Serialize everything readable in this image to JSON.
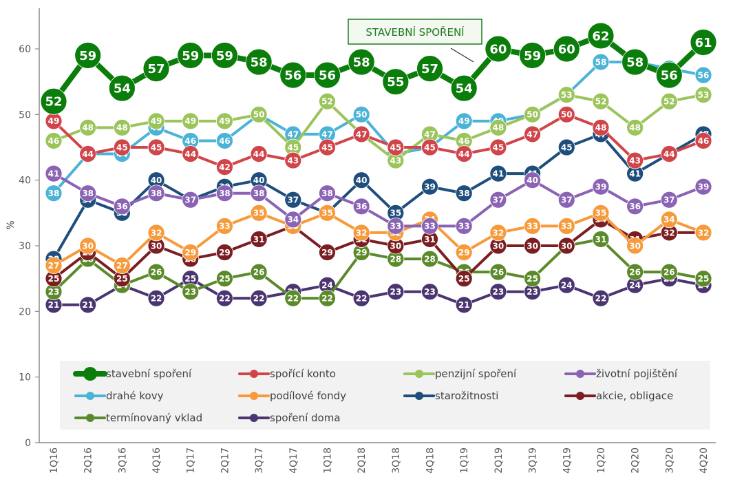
{
  "chart_data": {
    "type": "line",
    "title": "",
    "xlabel": "",
    "ylabel": "%",
    "ylim": [
      0,
      65
    ],
    "yticks": [
      "0",
      "10",
      "20",
      "30",
      "40",
      "50",
      "60"
    ],
    "grid": false,
    "legend_position": "bottom-inside",
    "categories": [
      "1Q16",
      "2Q16",
      "3Q16",
      "4Q16",
      "1Q17",
      "2Q17",
      "3Q17",
      "4Q17",
      "1Q18",
      "2Q18",
      "3Q18",
      "4Q18",
      "1Q19",
      "2Q19",
      "3Q19",
      "4Q19",
      "1Q20",
      "2Q20",
      "3Q20",
      "4Q20"
    ],
    "annotation": "STAVEBNÍ SPOŘENÍ",
    "series": [
      {
        "name": "stavební spoření",
        "color": "#0a7d0a",
        "emphasis": true,
        "values": [
          52,
          59,
          54,
          57,
          59,
          59,
          58,
          56,
          56,
          58,
          55,
          57,
          54,
          60,
          59,
          60,
          62,
          58,
          56,
          61
        ]
      },
      {
        "name": "spořící konto",
        "color": "#d0454a",
        "values": [
          49,
          44,
          45,
          45,
          44,
          42,
          44,
          43,
          45,
          47,
          45,
          45,
          44,
          45,
          47,
          50,
          48,
          43,
          44,
          46
        ]
      },
      {
        "name": "penzijní spoření",
        "color": "#9bc45a",
        "values": [
          46,
          48,
          48,
          49,
          49,
          49,
          50,
          45,
          52,
          47,
          43,
          47,
          46,
          48,
          50,
          53,
          52,
          48,
          52,
          53
        ]
      },
      {
        "name": "životní pojištění",
        "color": "#8a63b5",
        "values": [
          41,
          38,
          36,
          38,
          37,
          38,
          38,
          34,
          38,
          36,
          33,
          33,
          33,
          37,
          40,
          37,
          39,
          36,
          37,
          39
        ]
      },
      {
        "name": "drahé kovy",
        "color": "#4bb3d6",
        "values": [
          38,
          44,
          44,
          48,
          46,
          46,
          50,
          47,
          47,
          50,
          44,
          45,
          49,
          49,
          50,
          53,
          58,
          58,
          57,
          56
        ]
      },
      {
        "name": "podílové fondy",
        "color": "#f79a3c",
        "values": [
          27,
          30,
          27,
          32,
          29,
          33,
          35,
          33,
          35,
          32,
          32,
          34,
          29,
          32,
          33,
          33,
          35,
          30,
          34,
          32
        ]
      },
      {
        "name": "starožitnosti",
        "color": "#1f4e7d",
        "values": [
          28,
          37,
          35,
          40,
          37,
          39,
          40,
          37,
          35,
          40,
          35,
          39,
          38,
          41,
          41,
          45,
          47,
          41,
          44,
          47
        ]
      },
      {
        "name": "akcie, obligace",
        "color": "#7a1e22",
        "values": [
          25,
          29,
          25,
          30,
          28,
          29,
          31,
          33,
          29,
          31,
          30,
          31,
          25,
          30,
          30,
          30,
          34,
          31,
          32,
          32
        ]
      },
      {
        "name": "termínovaný vklad",
        "color": "#5b8a2a",
        "values": [
          23,
          28,
          24,
          26,
          23,
          25,
          26,
          22,
          22,
          29,
          28,
          28,
          26,
          26,
          25,
          30,
          31,
          26,
          26,
          25
        ]
      },
      {
        "name": "spoření doma",
        "color": "#4a3570",
        "values": [
          21,
          21,
          24,
          22,
          25,
          22,
          22,
          23,
          24,
          22,
          23,
          23,
          21,
          23,
          23,
          24,
          22,
          24,
          25,
          24
        ]
      }
    ]
  }
}
